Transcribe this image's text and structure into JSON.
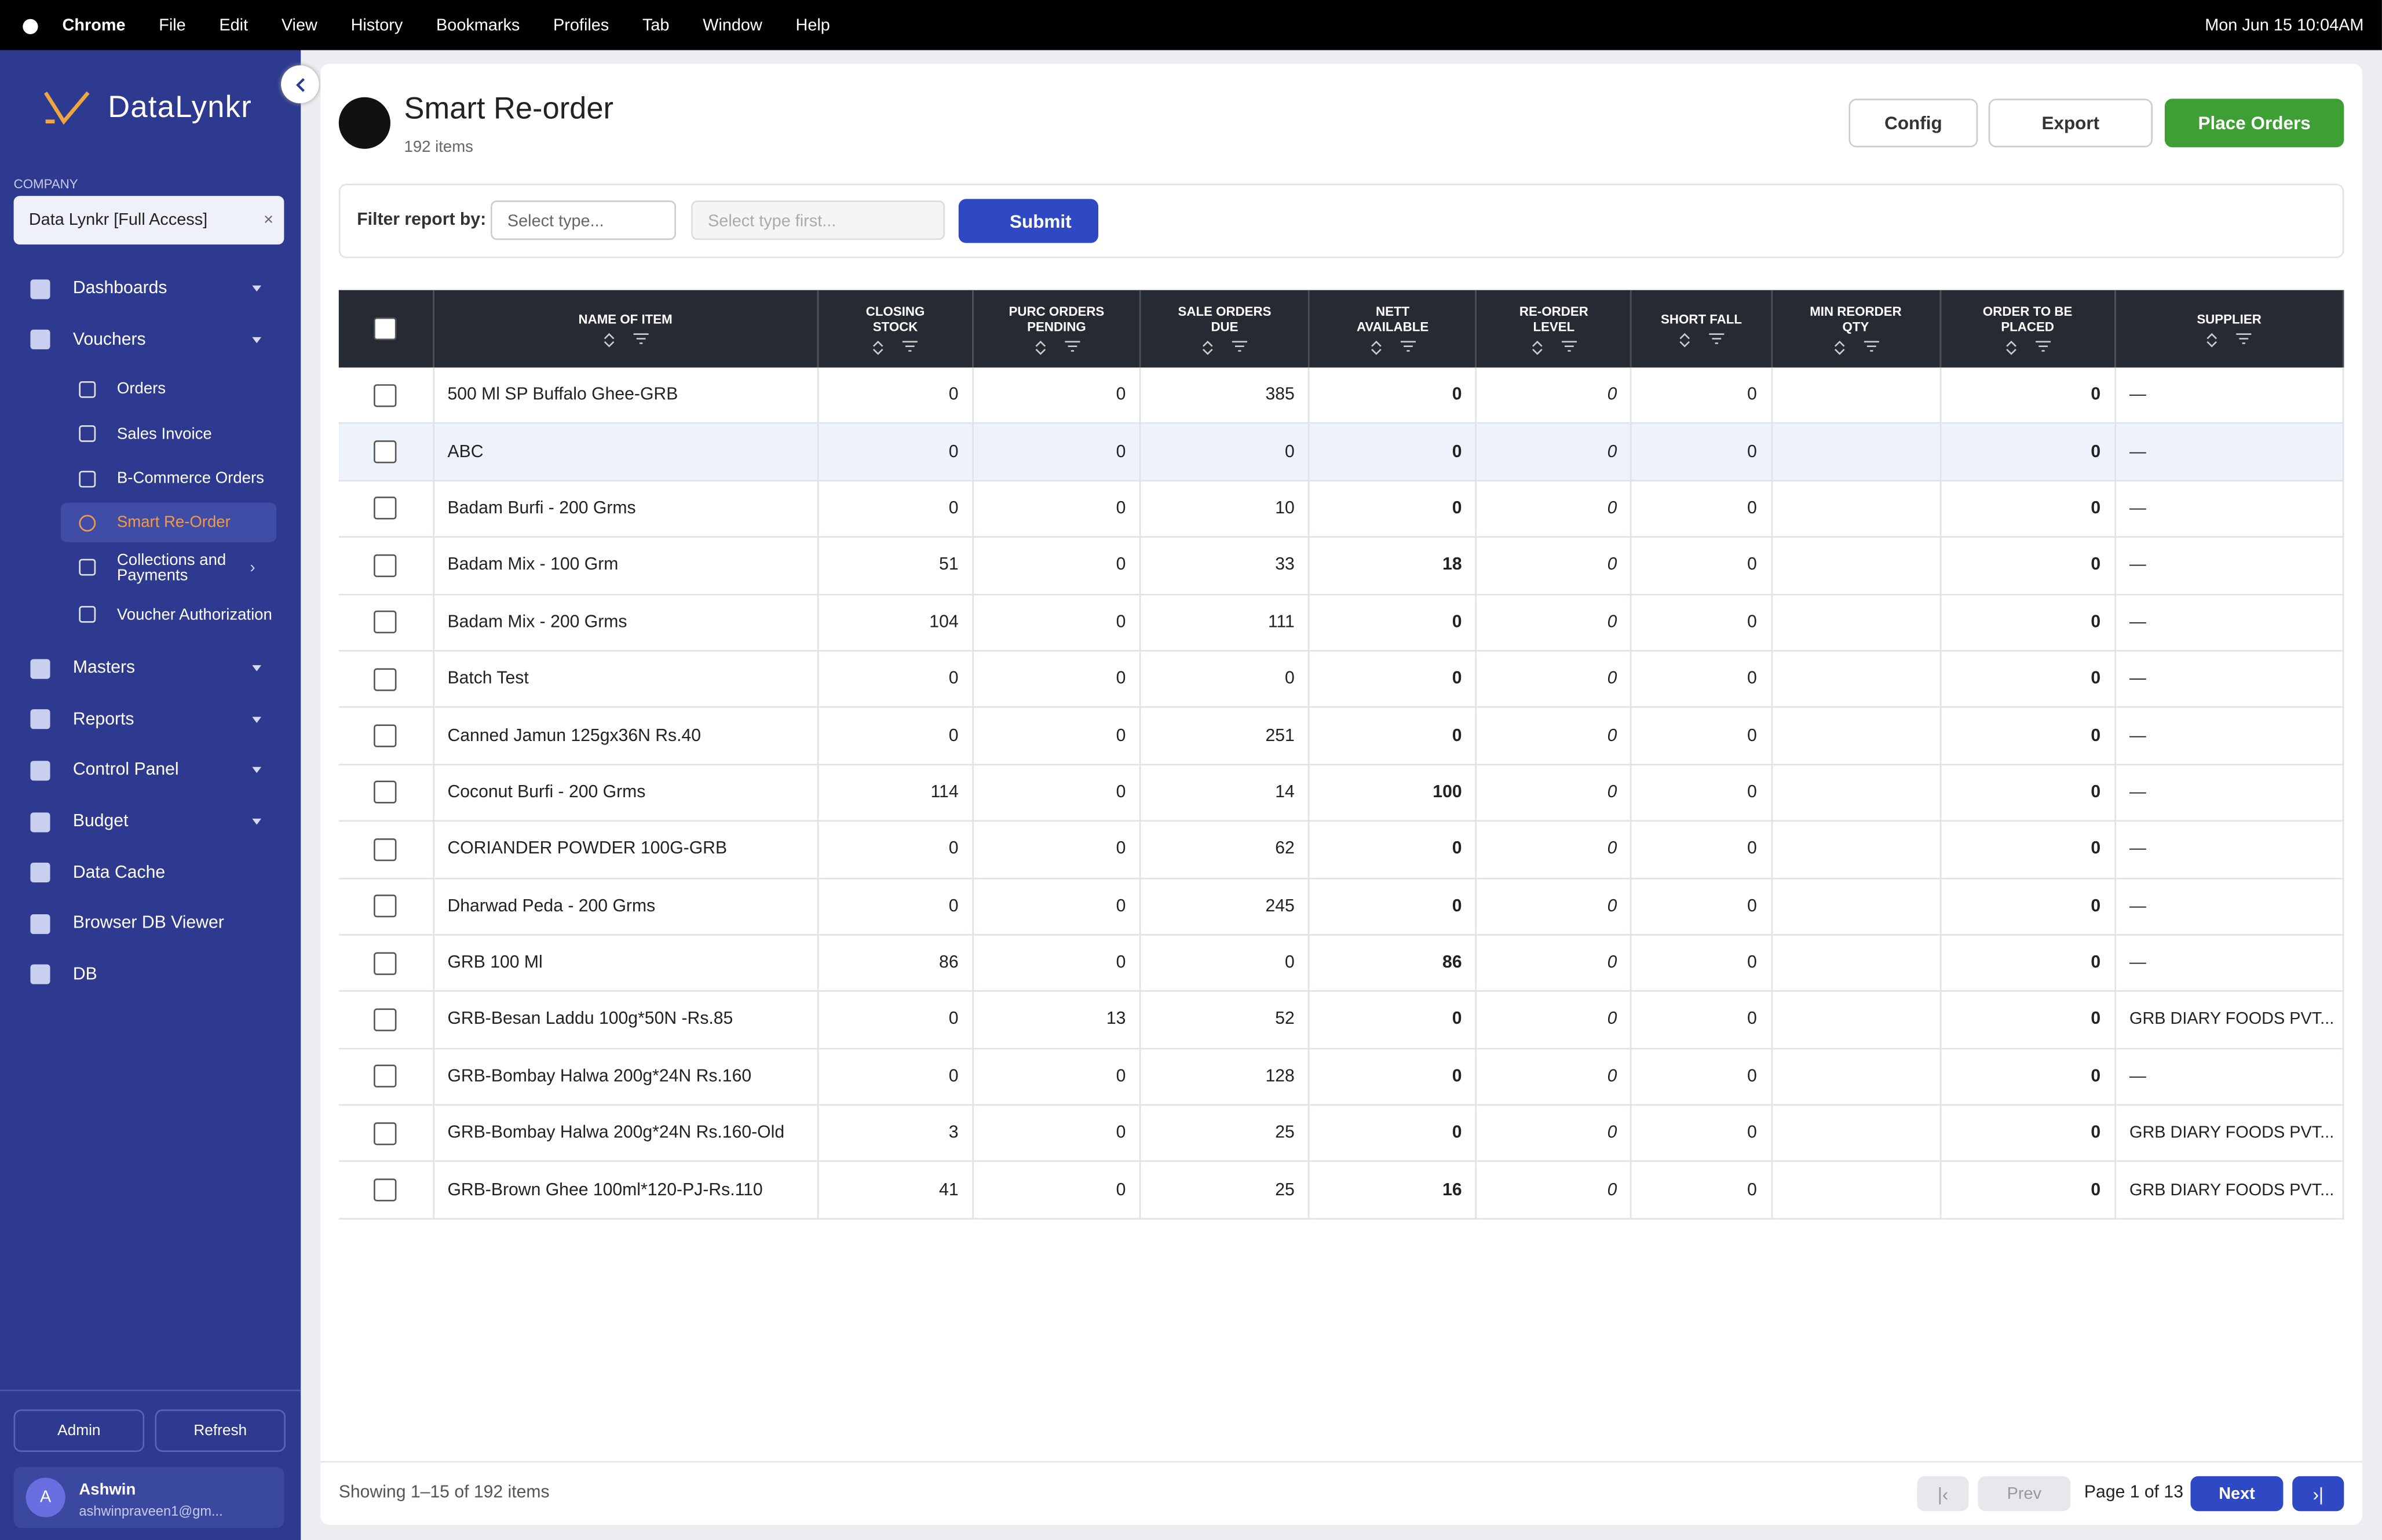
{
  "menubar": {
    "app": "Chrome",
    "menus": [
      "File",
      "Edit",
      "View",
      "History",
      "Bookmarks",
      "Profiles",
      "Tab",
      "Window",
      "Help"
    ],
    "datetime": "Mon Jun 15  10:04AM"
  },
  "sidebar": {
    "brand": "DataLynkr",
    "company_label": "COMPANY",
    "company": "Data Lynkr [Full Access]",
    "company_clear": "×",
    "nav": [
      {
        "label": "Dashboards",
        "caret": true
      },
      {
        "label": "Vouchers",
        "caret": true,
        "children": [
          {
            "label": "Orders"
          },
          {
            "label": "Sales Invoice"
          },
          {
            "label": "B-Commerce Orders"
          },
          {
            "label": "Smart Re-Order",
            "active": true
          },
          {
            "label": "Collections and Payments",
            "chevron": true
          },
          {
            "label": "Voucher Authorization"
          }
        ]
      },
      {
        "label": "Masters",
        "caret": true
      },
      {
        "label": "Reports",
        "caret": true
      },
      {
        "label": "Control Panel",
        "caret": true
      },
      {
        "label": "Budget",
        "caret": true
      },
      {
        "label": "Data Cache"
      },
      {
        "label": "Browser DB Viewer"
      },
      {
        "label": "DB"
      }
    ],
    "admin": "Admin",
    "refresh": "Refresh",
    "user": {
      "initial": "A",
      "name": "Ashwin",
      "email": "ashwinpraveen1@gm..."
    }
  },
  "header": {
    "title": "Smart Re-order",
    "subtitle": "192 items",
    "config": "Config",
    "export": "Export",
    "place_orders": "Place Orders"
  },
  "filter": {
    "label": "Filter report by:",
    "type_placeholder": "Select type...",
    "value_placeholder": "Select type first...",
    "submit": "Submit"
  },
  "table": {
    "columns": [
      "NAME OF ITEM",
      "CLOSING STOCK",
      "PURC ORDERS PENDING",
      "SALE ORDERS DUE",
      "NETT AVAILABLE",
      "RE-ORDER LEVEL",
      "SHORT FALL",
      "MIN REORDER QTY",
      "ORDER TO BE PLACED",
      "SUPPLIER"
    ],
    "rows": [
      [
        "500 Ml SP Buffalo Ghee-GRB",
        0,
        0,
        385,
        0,
        0,
        0,
        null,
        0,
        "—"
      ],
      [
        "ABC",
        0,
        0,
        0,
        0,
        0,
        0,
        null,
        0,
        "—"
      ],
      [
        "Badam Burfi - 200 Grms",
        0,
        0,
        10,
        0,
        0,
        0,
        null,
        0,
        "—"
      ],
      [
        "Badam Mix - 100 Grm",
        51,
        0,
        33,
        18,
        0,
        0,
        null,
        0,
        "—"
      ],
      [
        "Badam Mix - 200 Grms",
        104,
        0,
        111,
        0,
        0,
        0,
        null,
        0,
        "—"
      ],
      [
        "Batch Test",
        0,
        0,
        0,
        0,
        0,
        0,
        null,
        0,
        "—"
      ],
      [
        "Canned Jamun 125gx36N Rs.40",
        0,
        0,
        251,
        0,
        0,
        0,
        null,
        0,
        "—"
      ],
      [
        "Coconut Burfi - 200 Grms",
        114,
        0,
        14,
        100,
        0,
        0,
        null,
        0,
        "—"
      ],
      [
        "CORIANDER POWDER 100G-GRB",
        0,
        0,
        62,
        0,
        0,
        0,
        null,
        0,
        "—"
      ],
      [
        "Dharwad Peda - 200 Grms",
        0,
        0,
        245,
        0,
        0,
        0,
        null,
        0,
        "—"
      ],
      [
        "GRB 100 Ml",
        86,
        0,
        0,
        86,
        0,
        0,
        null,
        0,
        "—"
      ],
      [
        "GRB-Besan Laddu 100g*50N -Rs.85",
        0,
        13,
        52,
        0,
        0,
        0,
        null,
        0,
        "GRB DIARY FOODS PVT..."
      ],
      [
        "GRB-Bombay Halwa 200g*24N Rs.160",
        0,
        0,
        128,
        0,
        0,
        0,
        null,
        0,
        "—"
      ],
      [
        "GRB-Bombay Halwa 200g*24N Rs.160-Old",
        3,
        0,
        25,
        0,
        0,
        0,
        null,
        0,
        "GRB DIARY FOODS PVT..."
      ],
      [
        "GRB-Brown Ghee 100ml*120-PJ-Rs.110",
        41,
        0,
        25,
        16,
        0,
        0,
        null,
        0,
        "GRB DIARY FOODS PVT..."
      ]
    ]
  },
  "footer": {
    "showing": "Showing 1–15 of 192 items",
    "prev": "Prev",
    "page": "Page 1 of 13",
    "next": "Next"
  }
}
